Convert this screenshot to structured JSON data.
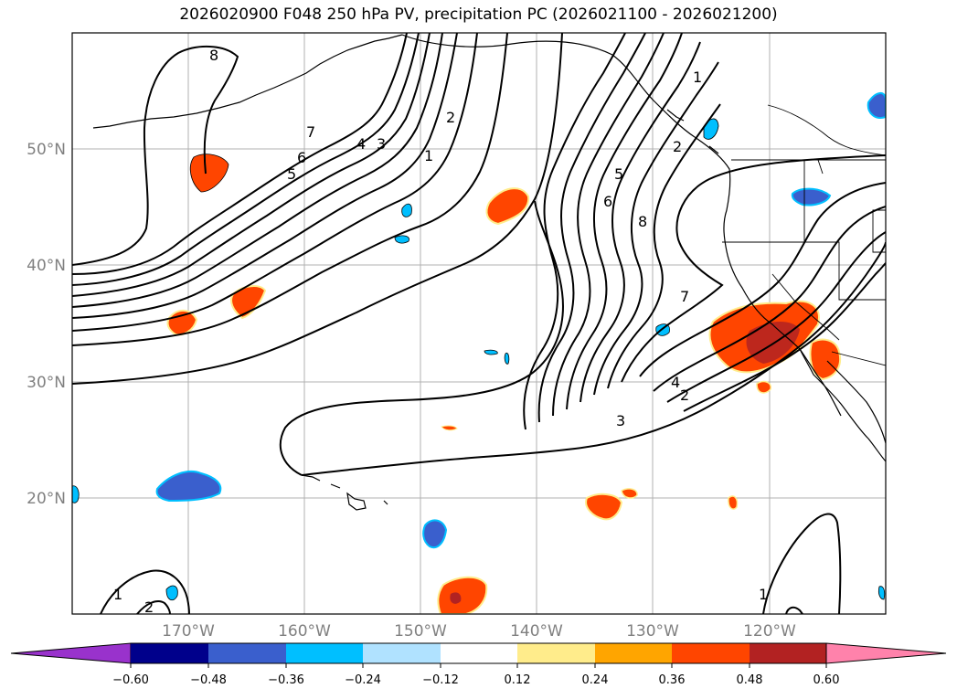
{
  "title": "2026020900 F048 250 hPa PV, precipitation PC (2026021100 - 2026021200)",
  "lat_labels": [
    "50°N",
    "40°N",
    "30°N",
    "20°N"
  ],
  "lon_labels": [
    "170°W",
    "160°W",
    "150°W",
    "140°W",
    "130°W",
    "120°W"
  ],
  "colorbar": {
    "ticks": [
      "−0.60",
      "−0.48",
      "−0.36",
      "−0.24",
      "−0.12",
      "0.12",
      "0.24",
      "0.36",
      "0.48",
      "0.60"
    ],
    "colors": [
      "#9932CC",
      "#00008B",
      "#3A5FCD",
      "#00BFFF",
      "#B0E2FF",
      "#FFFFFF",
      "#FFEC8B",
      "#FFA500",
      "#FF4500",
      "#B22222",
      "#FF82AB"
    ]
  },
  "contour_labels": [
    "8",
    "7",
    "6",
    "5",
    "4",
    "3",
    "2",
    "1",
    "1",
    "2",
    "5",
    "6",
    "8",
    "7",
    "4",
    "2",
    "3",
    "1",
    "2",
    "1"
  ],
  "colors": {
    "positive": "#FF4500",
    "strong_positive": "#B22222",
    "negative": "#3A5FCD",
    "light_negative": "#00BFFF"
  }
}
